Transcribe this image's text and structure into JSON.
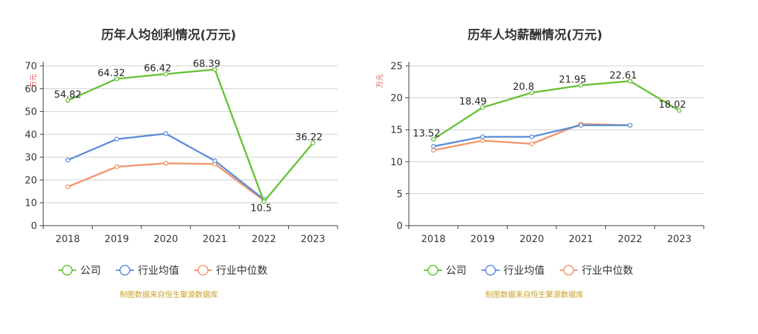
{
  "colors": {
    "company": "#66c233",
    "industry_avg": "#5b8ed8",
    "industry_median": "#f0956a"
  },
  "legend": [
    "公司",
    "行业均值",
    "行业中位数"
  ],
  "source_note": "制图数据来自恒生聚源数据库",
  "chart_data": [
    {
      "type": "line",
      "title": "历年人均创利情况(万元)",
      "ylabel": "万元",
      "xlabel": "",
      "categories": [
        "2018",
        "2019",
        "2020",
        "2021",
        "2022",
        "2023"
      ],
      "ylim": [
        0,
        70
      ],
      "yticks": [
        0,
        10,
        20,
        30,
        40,
        50,
        60,
        70
      ],
      "grid": true,
      "legend_position": "bottom",
      "series": [
        {
          "name": "公司",
          "values": [
            54.82,
            64.32,
            66.42,
            68.39,
            10.5,
            36.22
          ],
          "labels": [
            "54.82",
            "64.32",
            "66.42",
            "68.39",
            "10.5",
            "36.22"
          ]
        },
        {
          "name": "行业均值",
          "values": [
            28.7,
            37.9,
            40.3,
            28.4,
            11.5,
            null
          ]
        },
        {
          "name": "行业中位数",
          "values": [
            17.0,
            25.8,
            27.3,
            27.0,
            11.0,
            null
          ]
        }
      ]
    },
    {
      "type": "line",
      "title": "历年人均薪酬情况(万元)",
      "ylabel": "万元",
      "xlabel": "",
      "categories": [
        "2018",
        "2019",
        "2020",
        "2021",
        "2022",
        "2023"
      ],
      "ylim": [
        0,
        25
      ],
      "yticks": [
        0,
        5,
        10,
        15,
        20,
        25
      ],
      "grid": true,
      "legend_position": "bottom",
      "series": [
        {
          "name": "公司",
          "values": [
            13.52,
            18.49,
            20.8,
            21.95,
            22.61,
            18.02
          ],
          "labels": [
            "13.52",
            "18.49",
            "20.8",
            "21.95",
            "22.61",
            "18.02"
          ]
        },
        {
          "name": "行业均值",
          "values": [
            12.4,
            13.9,
            13.9,
            15.7,
            15.7,
            null
          ]
        },
        {
          "name": "行业中位数",
          "values": [
            11.8,
            13.3,
            12.8,
            15.9,
            15.7,
            null
          ]
        }
      ]
    }
  ]
}
